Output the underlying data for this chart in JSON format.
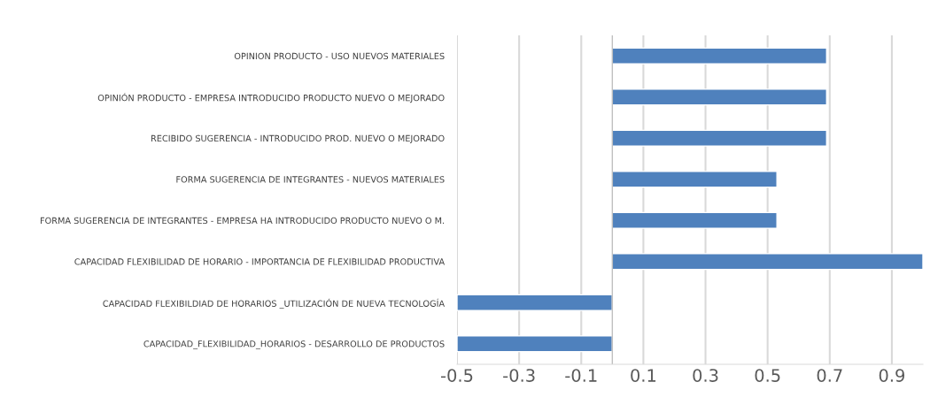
{
  "chart_data": {
    "type": "bar",
    "orientation": "horizontal",
    "categories": [
      "OPINION PRODUCTO - USO NUEVOS MATERIALES",
      "OPINIÓN PRODUCTO - EMPRESA INTRODUCIDO PRODUCTO NUEVO O MEJORADO",
      "RECIBIDO SUGERENCIA - INTRODUCIDO PROD. NUEVO O MEJORADO",
      "FORMA SUGERENCIA DE INTEGRANTES - NUEVOS MATERIALES",
      "FORMA SUGERENCIA DE INTEGRANTES - EMPRESA HA INTRODUCIDO PRODUCTO NUEVO O M.",
      "CAPACIDAD FLEXIBILIDAD DE HORARIO - IMPORTANCIA DE FLEXIBILIDAD PRODUCTIVA",
      "CAPACIDAD FLEXIBILDIAD DE HORARIOS _UTILIZACIÓN DE NUEVA TECNOLOGÍA",
      "CAPACIDAD_FLEXIBILIDAD_HORARIOS - DESARROLLO DE PRODUCTOS"
    ],
    "values": [
      0.69,
      0.69,
      0.69,
      0.53,
      0.53,
      1.0,
      -0.5,
      -0.5
    ],
    "color": "#4f81bd",
    "xlim": [
      -0.5,
      1.0
    ],
    "xticks": [
      -0.5,
      -0.3,
      -0.1,
      0.1,
      0.3,
      0.5,
      0.7,
      0.9
    ],
    "grid": "x"
  }
}
